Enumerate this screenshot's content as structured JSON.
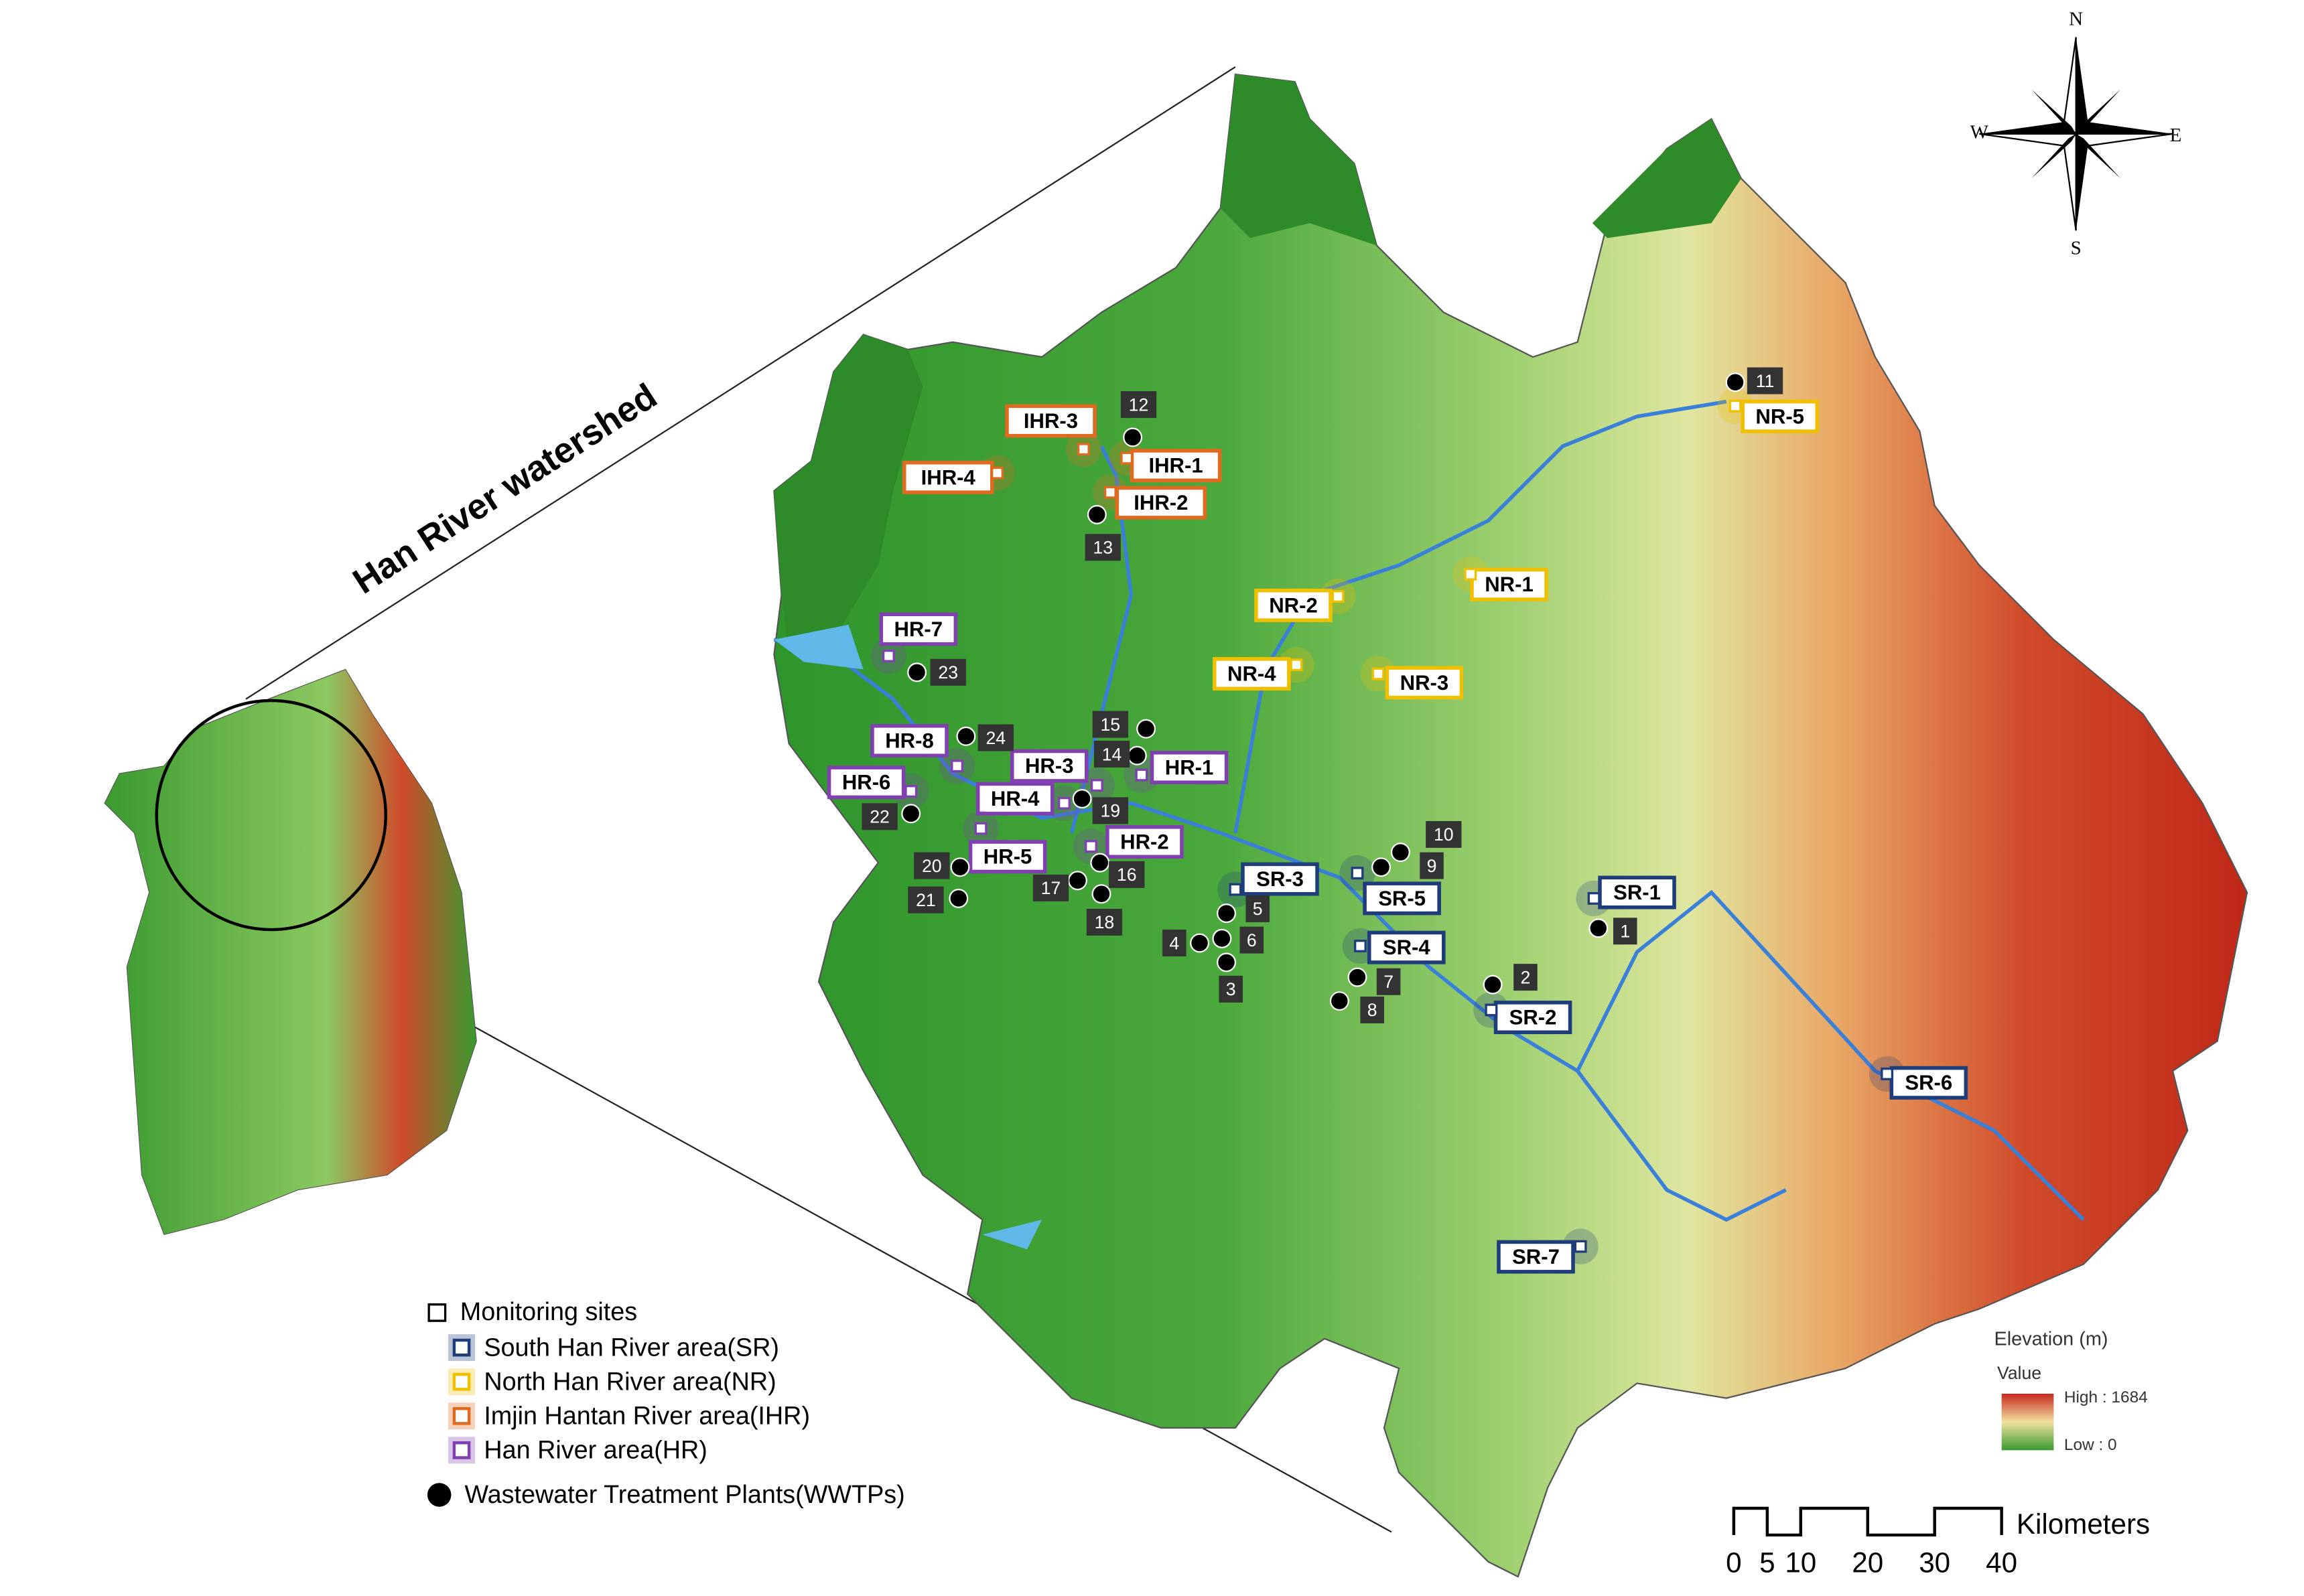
{
  "map": {
    "title": "Han River watershed",
    "compass": {
      "n": "N",
      "s": "S",
      "e": "E",
      "w": "W"
    },
    "sites": [
      {
        "label": "SR-1",
        "color": "#1f3d7a"
      },
      {
        "label": "SR-2",
        "color": "#1f3d7a"
      },
      {
        "label": "SR-3",
        "color": "#1f3d7a"
      },
      {
        "label": "SR-4",
        "color": "#1f3d7a"
      },
      {
        "label": "SR-5",
        "color": "#1f3d7a"
      },
      {
        "label": "SR-6",
        "color": "#1f3d7a"
      },
      {
        "label": "SR-7",
        "color": "#1f3d7a"
      },
      {
        "label": "NR-1",
        "color": "#f0c000"
      },
      {
        "label": "NR-2",
        "color": "#f0c000"
      },
      {
        "label": "NR-3",
        "color": "#f0c000"
      },
      {
        "label": "NR-4",
        "color": "#f0c000"
      },
      {
        "label": "NR-5",
        "color": "#f0c000"
      },
      {
        "label": "IHR-1",
        "color": "#e06a20"
      },
      {
        "label": "IHR-2",
        "color": "#e06a20"
      },
      {
        "label": "IHR-3",
        "color": "#e06a20"
      },
      {
        "label": "IHR-4",
        "color": "#e06a20"
      },
      {
        "label": "HR-1",
        "color": "#8040b0"
      },
      {
        "label": "HR-2",
        "color": "#8040b0"
      },
      {
        "label": "HR-3",
        "color": "#8040b0"
      },
      {
        "label": "HR-4",
        "color": "#8040b0"
      },
      {
        "label": "HR-5",
        "color": "#8040b0"
      },
      {
        "label": "HR-6",
        "color": "#8040b0"
      },
      {
        "label": "HR-7",
        "color": "#8040b0"
      },
      {
        "label": "HR-8",
        "color": "#8040b0"
      }
    ],
    "wwtps": [
      "1",
      "2",
      "3",
      "4",
      "5",
      "6",
      "7",
      "8",
      "9",
      "10",
      "11",
      "12",
      "13",
      "14",
      "15",
      "16",
      "17",
      "18",
      "19",
      "20",
      "21",
      "22",
      "23",
      "24"
    ],
    "legend": {
      "sites_title": "Monitoring sites",
      "items": [
        {
          "text": "South Han River area(SR)",
          "color": "#1f3d7a"
        },
        {
          "text": "North Han River area(NR)",
          "color": "#f0c000"
        },
        {
          "text": "Imjin Hantan River area(IHR)",
          "color": "#e06a20"
        },
        {
          "text": "Han River area(HR)",
          "color": "#8040b0"
        }
      ],
      "wwtp_text": "Wastewater Treatment Plants(WWTPs)"
    },
    "elevation": {
      "title": "Elevation (m)",
      "value": "Value",
      "high": "High : 1684",
      "low": "Low : 0"
    },
    "scale": {
      "ticks": [
        0,
        5,
        10,
        20,
        30,
        40
      ],
      "unit": "Kilometers"
    }
  }
}
